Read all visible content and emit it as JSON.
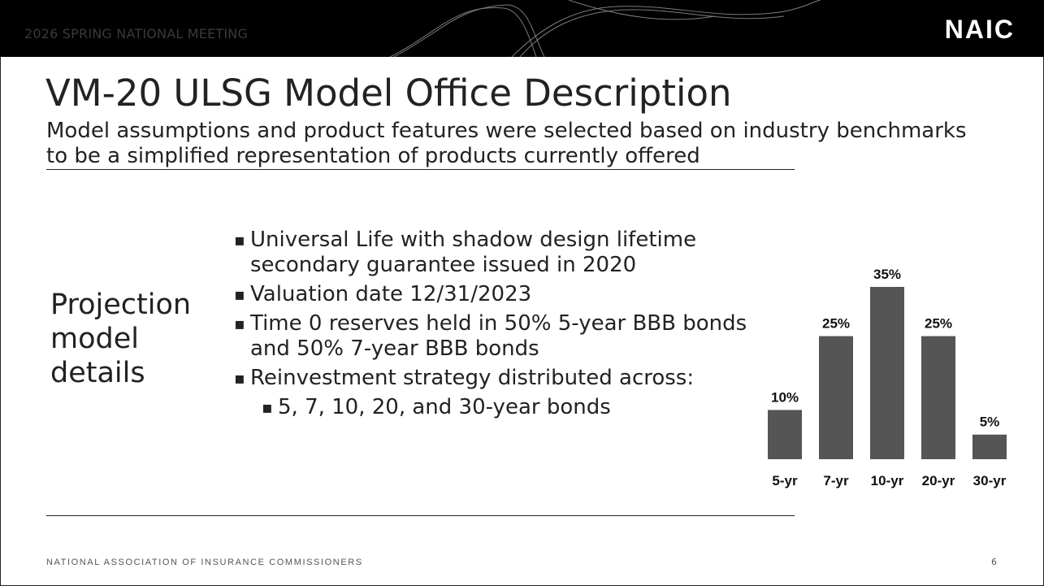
{
  "header": {
    "meeting": "2026 SPRING NATIONAL MEETING",
    "logo": "NAIC"
  },
  "title": "VM-20 ULSG Model Office Description",
  "subtitle": "Model assumptions and product features were selected based on industry benchmarks to be a simplified representation of products currently offered",
  "section_label": "Projection model details",
  "bullets": [
    "Universal Life with shadow design lifetime secondary guarantee issued in 2020",
    "Valuation date 12/31/2023",
    "Time 0 reserves held in 50% 5-year BBB bonds and 50% 7-year BBB bonds",
    "Reinvestment strategy distributed across:"
  ],
  "sub_bullets": [
    "5, 7, 10, 20, and 30-year bonds"
  ],
  "chart_data": {
    "type": "bar",
    "categories": [
      "5-yr",
      "7-yr",
      "10-yr",
      "20-yr",
      "30-yr"
    ],
    "values": [
      10,
      25,
      35,
      25,
      5
    ],
    "value_labels": [
      "10%",
      "25%",
      "35%",
      "25%",
      "5%"
    ],
    "color": "#555555"
  },
  "footer": "NATIONAL ASSOCIATION OF INSURANCE COMMISSIONERS",
  "page_number": 6
}
